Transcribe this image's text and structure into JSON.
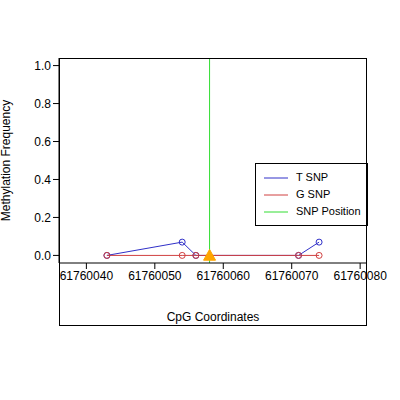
{
  "chart_data": {
    "type": "line",
    "x_label": "CpG Coordinates",
    "y_label": "Methylation Frequency",
    "x": [
      61760043,
      61760054,
      61760056,
      61760071,
      61760074
    ],
    "series": [
      {
        "name": "T SNP",
        "color": "#3030c8",
        "marker": "open_circle",
        "values": [
          0,
          0.07,
          0,
          0,
          0.07
        ]
      },
      {
        "name": "G SNP",
        "color": "#d04040",
        "marker": "open_circle",
        "values": [
          0,
          0,
          0,
          0,
          0
        ]
      }
    ],
    "snp_position": {
      "name": "SNP Position",
      "color": "#33dd33",
      "x": 61760058
    },
    "snp_marker": {
      "x": 61760058,
      "y": 0,
      "color": "#ffa500",
      "marker": "triangle"
    },
    "xlim": [
      61760036,
      61760081
    ],
    "xticks": [
      61760040,
      61760050,
      61760060,
      61760070,
      61760080
    ],
    "ylim": [
      -0.04,
      1.04
    ],
    "yticks": [
      {
        "value": 0,
        "label": "0.0"
      },
      {
        "value": 0.2,
        "label": "0.2"
      },
      {
        "value": 0.4,
        "label": "0.4"
      },
      {
        "value": 0.6,
        "label": "0.6"
      },
      {
        "value": 0.8,
        "label": "0.8"
      },
      {
        "value": 1,
        "label": "1.0"
      }
    ],
    "legend": "right",
    "grid": false
  }
}
